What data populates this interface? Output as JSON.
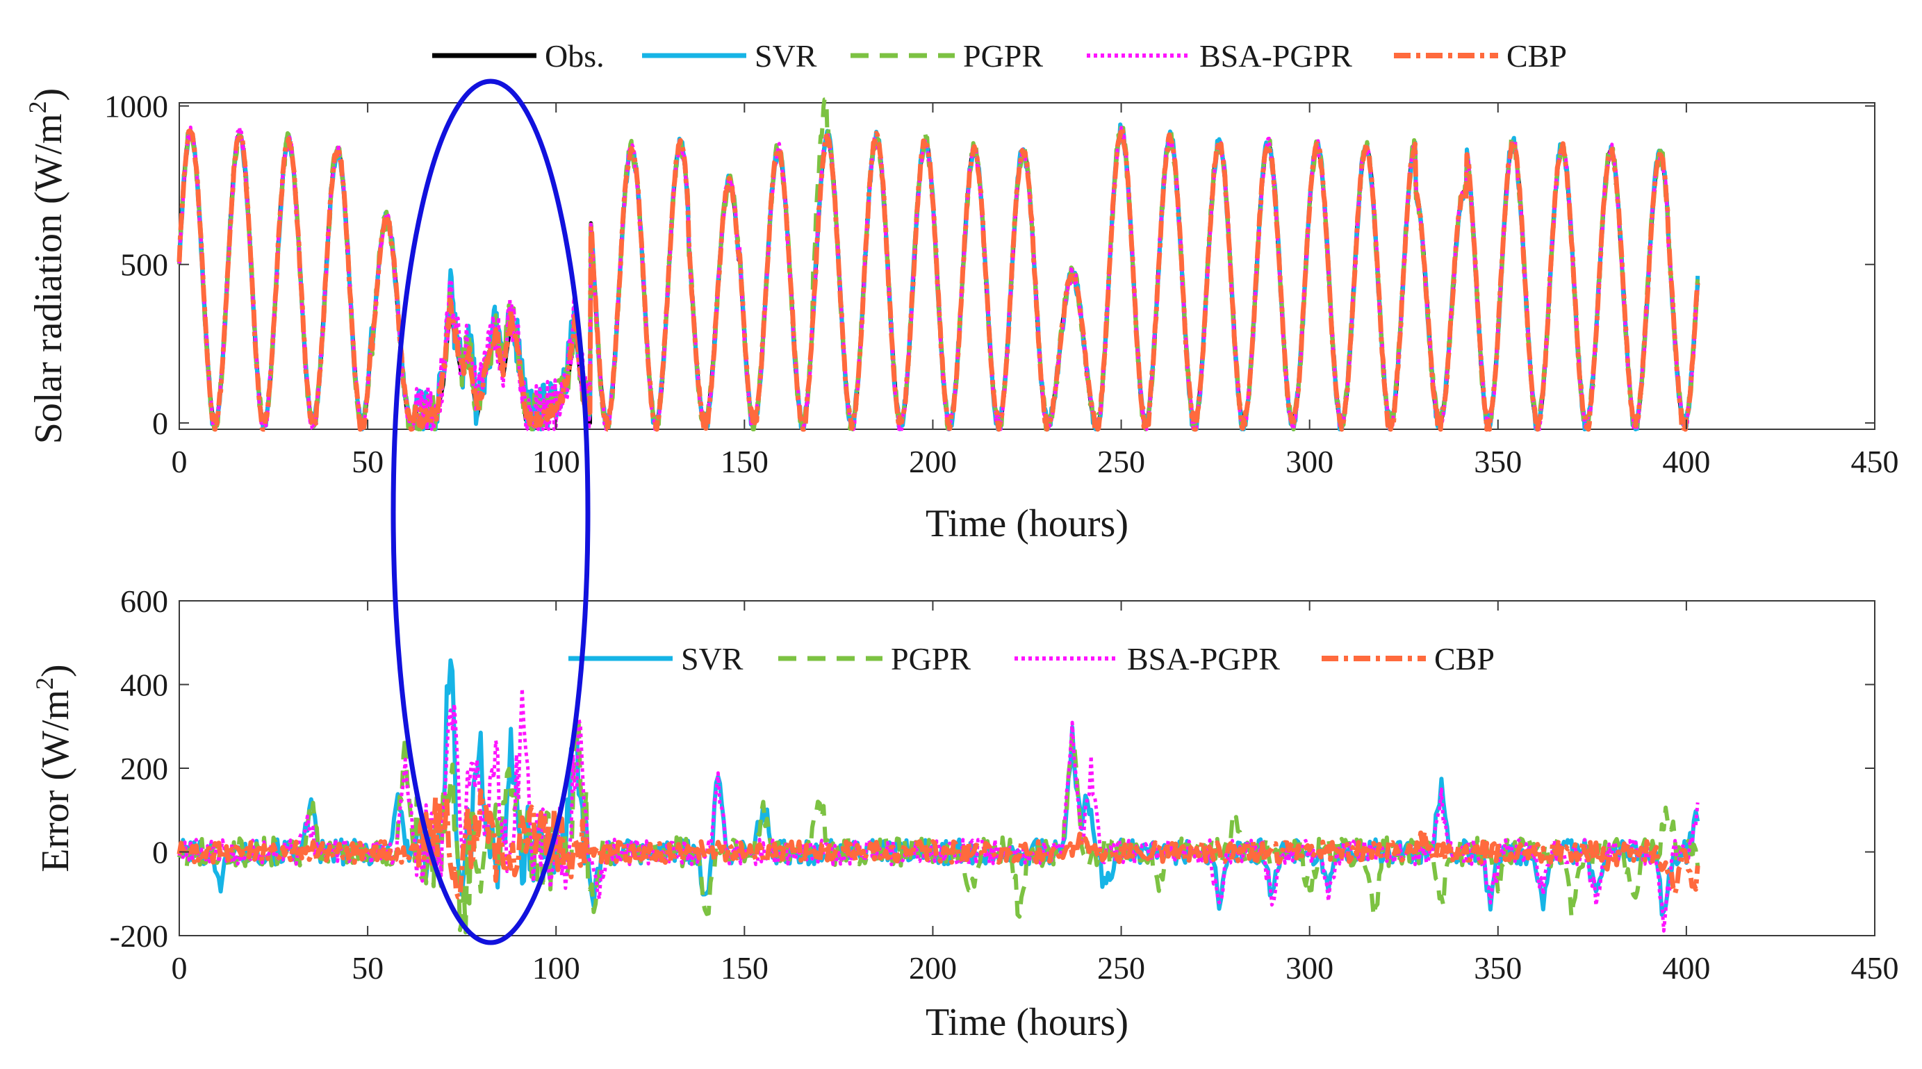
{
  "colors": {
    "obs": "#000000",
    "svr": "#16b4e6",
    "pgpr": "#7cc242",
    "bsa_pgpr": "#ff14ff",
    "cbp": "#ff6a3d",
    "highlight": "#1111dd"
  },
  "chart_data": [
    {
      "type": "line",
      "xlabel": "Time (hours)",
      "ylabel": "Solar radiation (W/m2)",
      "ylabel_main": "Solar radiation (W/m",
      "ylabel_sup": "2",
      "ylabel_tail": ")",
      "xlim": [
        0,
        450
      ],
      "ylim": [
        -20,
        1010
      ],
      "xticks": [
        "0",
        "50",
        "100",
        "150",
        "200",
        "250",
        "300",
        "350",
        "400",
        "450"
      ],
      "yticks": [
        "0",
        "500",
        "1000"
      ],
      "legend_placement": "top (outside)",
      "legend": [
        "Obs.",
        "SVR",
        "PGPR",
        "BSA-PGPR",
        "CBP"
      ],
      "series": [
        {
          "name": "Obs.",
          "data_summary": "daily cycle, period 13 h, peaks ~900 W/m2, cloudy hours 65–108 with values 0–400"
        },
        {
          "name": "SVR"
        },
        {
          "name": "PGPR"
        },
        {
          "name": "BSA-PGPR"
        },
        {
          "name": "CBP"
        }
      ],
      "model": {
        "period": 13,
        "peaks": [
          [
            3,
            920
          ],
          [
            16,
            910
          ],
          [
            30,
            890
          ],
          [
            44,
            860
          ],
          [
            58,
            640
          ],
          [
            114,
            860
          ],
          [
            128,
            880
          ],
          [
            142,
            760
          ],
          [
            155,
            860
          ],
          [
            169,
            900
          ],
          [
            182,
            900
          ],
          [
            196,
            890
          ],
          [
            210,
            860
          ],
          [
            223,
            860
          ],
          [
            237,
            470
          ],
          [
            252,
            920
          ],
          [
            266,
            900
          ],
          [
            280,
            880
          ],
          [
            294,
            880
          ],
          [
            307,
            870
          ],
          [
            321,
            870
          ],
          [
            335,
            730
          ],
          [
            348,
            880
          ],
          [
            362,
            870
          ],
          [
            375,
            860
          ],
          [
            389,
            850
          ],
          [
            401,
            790
          ]
        ],
        "cloudy_region": [
          [
            63,
            0
          ],
          [
            68,
            10
          ],
          [
            70,
            120
          ],
          [
            72,
            380
          ],
          [
            73,
            280
          ],
          [
            75,
            150
          ],
          [
            77,
            220
          ],
          [
            79,
            20
          ],
          [
            82,
            200
          ],
          [
            84,
            270
          ],
          [
            86,
            150
          ],
          [
            88,
            320
          ],
          [
            90,
            200
          ],
          [
            92,
            10
          ],
          [
            95,
            0
          ],
          [
            100,
            30
          ],
          [
            103,
            120
          ],
          [
            105,
            300
          ],
          [
            107,
            100
          ],
          [
            109,
            0
          ]
        ]
      }
    },
    {
      "type": "line",
      "xlabel": "Time (hours)",
      "ylabel": "Error (W/m2)",
      "ylabel_main": "Error (W/m",
      "ylabel_sup": "2",
      "ylabel_tail": ")",
      "xlim": [
        0,
        450
      ],
      "ylim": [
        -200,
        600
      ],
      "xticks": [
        "0",
        "50",
        "100",
        "150",
        "200",
        "250",
        "300",
        "350",
        "400",
        "450"
      ],
      "yticks": [
        "-200",
        "0",
        "200",
        "400",
        "600"
      ],
      "legend_placement": "top-center (inside)",
      "legend": [
        "SVR",
        "PGPR",
        "BSA-PGPR",
        "CBP"
      ],
      "series": [
        {
          "name": "SVR",
          "spikes": [
            [
              11,
              -70
            ],
            [
              35,
              100
            ],
            [
              58,
              140
            ],
            [
              72,
              510
            ],
            [
              74,
              -150
            ],
            [
              80,
              230
            ],
            [
              88,
              240
            ],
            [
              105,
              300
            ],
            [
              110,
              -100
            ],
            [
              140,
              -120
            ],
            [
              143,
              180
            ],
            [
              155,
              120
            ],
            [
              237,
              280
            ],
            [
              241,
              150
            ],
            [
              246,
              -100
            ],
            [
              276,
              -110
            ],
            [
              290,
              -120
            ],
            [
              305,
              -100
            ],
            [
              335,
              165
            ],
            [
              348,
              -110
            ],
            [
              362,
              -110
            ],
            [
              376,
              -110
            ],
            [
              394,
              -150
            ],
            [
              403,
              100
            ]
          ]
        },
        {
          "name": "PGPR",
          "spikes": [
            [
              35,
              110
            ],
            [
              60,
              250
            ],
            [
              72,
              230
            ],
            [
              75,
              -200
            ],
            [
              88,
              200
            ],
            [
              106,
              320
            ],
            [
              110,
              -140
            ],
            [
              140,
              -160
            ],
            [
              155,
              110
            ],
            [
              170,
              140
            ],
            [
              210,
              -80
            ],
            [
              223,
              -150
            ],
            [
              237,
              290
            ],
            [
              260,
              -100
            ],
            [
              280,
              70
            ],
            [
              300,
              -100
            ],
            [
              317,
              -170
            ],
            [
              335,
              -130
            ],
            [
              350,
              -100
            ],
            [
              370,
              -150
            ],
            [
              386,
              -130
            ],
            [
              395,
              100
            ]
          ]
        },
        {
          "name": "BSA-PGPR",
          "spikes": [
            [
              34,
              80
            ],
            [
              60,
              220
            ],
            [
              72,
              420
            ],
            [
              78,
              280
            ],
            [
              84,
              220
            ],
            [
              91,
              370
            ],
            [
              106,
              300
            ],
            [
              111,
              -110
            ],
            [
              143,
              170
            ],
            [
              237,
              290
            ],
            [
              242,
              200
            ],
            [
              276,
              -120
            ],
            [
              290,
              -120
            ],
            [
              305,
              -110
            ],
            [
              335,
              120
            ],
            [
              348,
              -120
            ],
            [
              362,
              -100
            ],
            [
              376,
              -110
            ],
            [
              394,
              -170
            ],
            [
              403,
              90
            ]
          ]
        },
        {
          "name": "CBP",
          "spikes": [
            [
              70,
              110
            ],
            [
              74,
              -60
            ],
            [
              80,
              90
            ],
            [
              86,
              -70
            ],
            [
              95,
              50
            ],
            [
              104,
              -60
            ],
            [
              240,
              40
            ],
            [
              330,
              30
            ],
            [
              380,
              -40
            ],
            [
              394,
              -60
            ],
            [
              397,
              -90
            ],
            [
              402,
              -90
            ]
          ]
        }
      ]
    }
  ]
}
